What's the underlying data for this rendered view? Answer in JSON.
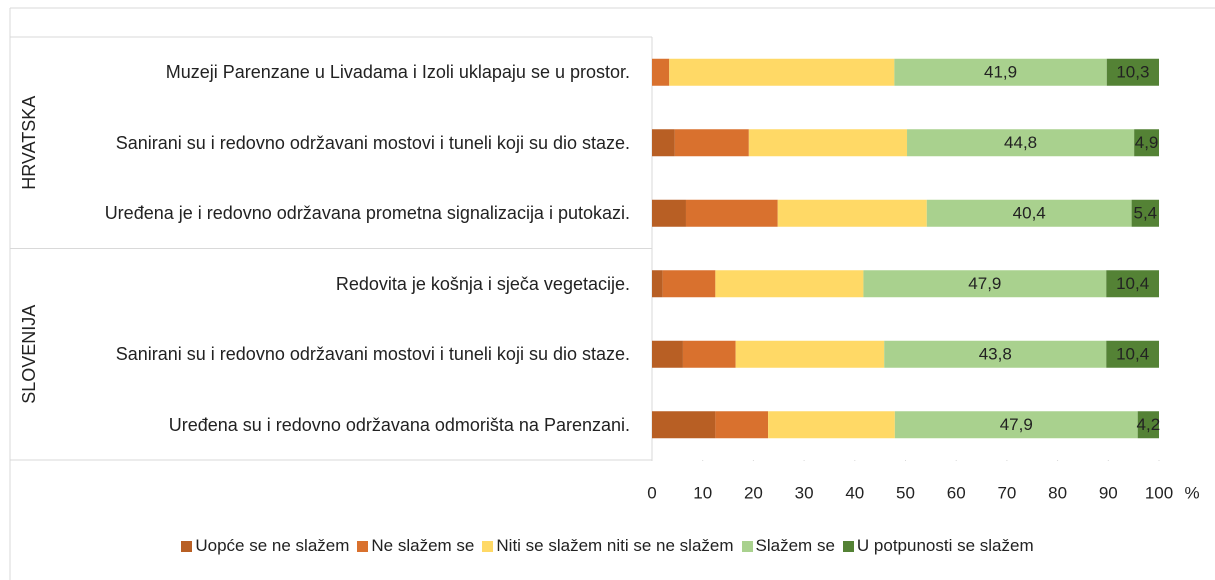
{
  "chart_data": {
    "type": "stacked_barh",
    "groups": [
      {
        "name": "HRVATSKA",
        "categories": [
          "Muzeji Parenzane u Livadama i Izoli uklapaju se u prostor.",
          "Sanirani su i redovno održavani mostovi i tuneli koji su dio staze.",
          "Uređena je i redovno održavana prometna signalizacija i putokazi."
        ]
      },
      {
        "name": "SLOVENIJA",
        "categories": [
          "Redovita je košnja i sječa vegetacije.",
          "Sanirani su i redovno održavani mostovi i tuneli koji su dio staze.",
          "Uređena su i redovno održavana odmorišta na Parenzani."
        ]
      }
    ],
    "series": [
      {
        "name": "Uopće se ne slažem",
        "color": "#b85f24",
        "values": [
          0,
          4.5,
          6.7,
          2.1,
          6.1,
          12.5
        ]
      },
      {
        "name": "Ne slažem se",
        "color": "#d9712e",
        "values": [
          3.4,
          14.6,
          18.1,
          10.4,
          10.4,
          10.4
        ]
      },
      {
        "name": "Niti se slažem niti se ne slažem",
        "color": "#ffd966",
        "values": [
          44.4,
          31.2,
          29.4,
          29.2,
          29.3,
          25.0
        ]
      },
      {
        "name": "Slažem se",
        "color": "#a9d18e",
        "values": [
          41.9,
          44.8,
          40.4,
          47.9,
          43.8,
          47.9
        ],
        "value_labels": [
          "41,9",
          "44,8",
          "40,4",
          "47,9",
          "43,8",
          "47,9"
        ]
      },
      {
        "name": "U potpunosti se slažem",
        "color": "#548235",
        "values": [
          10.3,
          4.9,
          5.4,
          10.4,
          10.4,
          4.2
        ],
        "value_labels": [
          "10,3",
          "4,9",
          "5,4",
          "10,4",
          "10,4",
          "4,2"
        ]
      }
    ],
    "xlim": [
      0,
      100
    ],
    "xticks": [
      0,
      10,
      20,
      30,
      40,
      50,
      60,
      70,
      80,
      90,
      100
    ],
    "xlabel": "%"
  }
}
